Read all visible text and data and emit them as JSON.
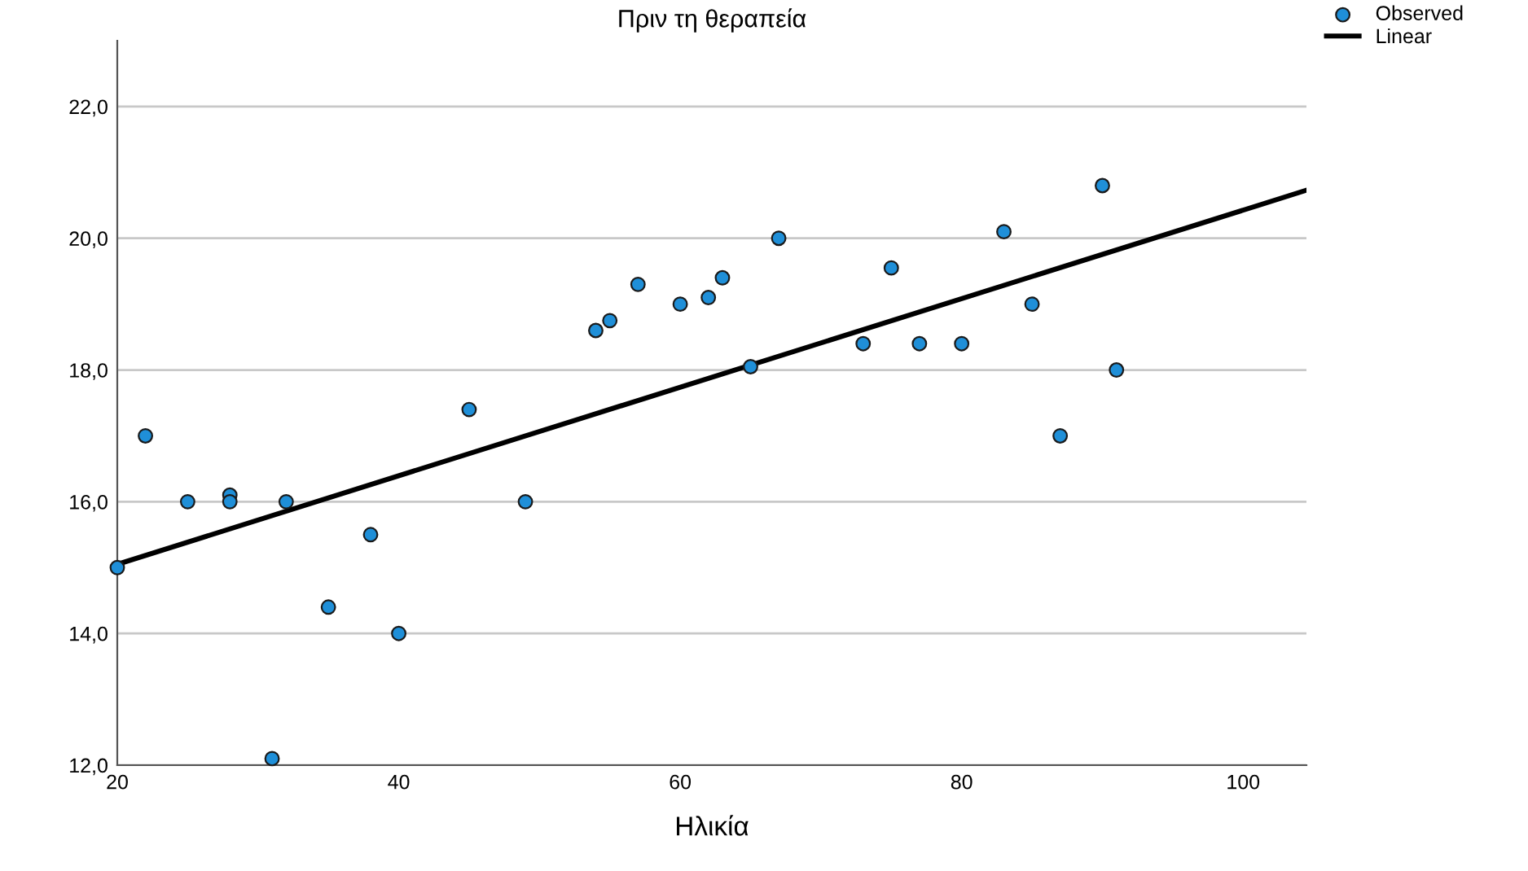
{
  "chart_data": {
    "type": "scatter",
    "title": "Πριν τη θεραπεία",
    "xlabel": "Ηλικία",
    "xlim": [
      20,
      104.5
    ],
    "xticks": [
      20,
      40,
      60,
      80,
      100
    ],
    "ylim": [
      12,
      23
    ],
    "yticks": [
      {
        "value": 12,
        "label": "12,0"
      },
      {
        "value": 14,
        "label": "14,0"
      },
      {
        "value": 16,
        "label": "16,0"
      },
      {
        "value": 18,
        "label": "18,0"
      },
      {
        "value": 20,
        "label": "20,0"
      },
      {
        "value": 22,
        "label": "22,0"
      }
    ],
    "grid": "y",
    "legend": "top right",
    "series": [
      {
        "name": "Observed",
        "marker": "circle",
        "color": "#1f8fd8",
        "x": [
          20,
          22,
          25,
          28,
          28,
          32,
          35,
          38,
          40,
          31,
          45,
          49,
          54,
          55,
          57,
          60,
          62,
          63,
          65,
          67,
          73,
          75,
          77,
          80,
          83,
          85,
          87,
          90,
          91
        ],
        "values": [
          15.0,
          17.0,
          16.0,
          16.1,
          16.0,
          16.0,
          14.4,
          15.5,
          14.0,
          12.1,
          17.4,
          16.0,
          18.6,
          18.75,
          19.3,
          19.0,
          19.1,
          19.4,
          18.05,
          20.0,
          18.4,
          19.55,
          18.4,
          18.4,
          20.1,
          19.0,
          17.0,
          20.8,
          18.0
        ]
      },
      {
        "name": "Linear",
        "type": "line",
        "marker": "none",
        "color": "#000000",
        "x": [
          20,
          104.5
        ],
        "values": [
          15.05,
          20.73
        ]
      }
    ]
  }
}
